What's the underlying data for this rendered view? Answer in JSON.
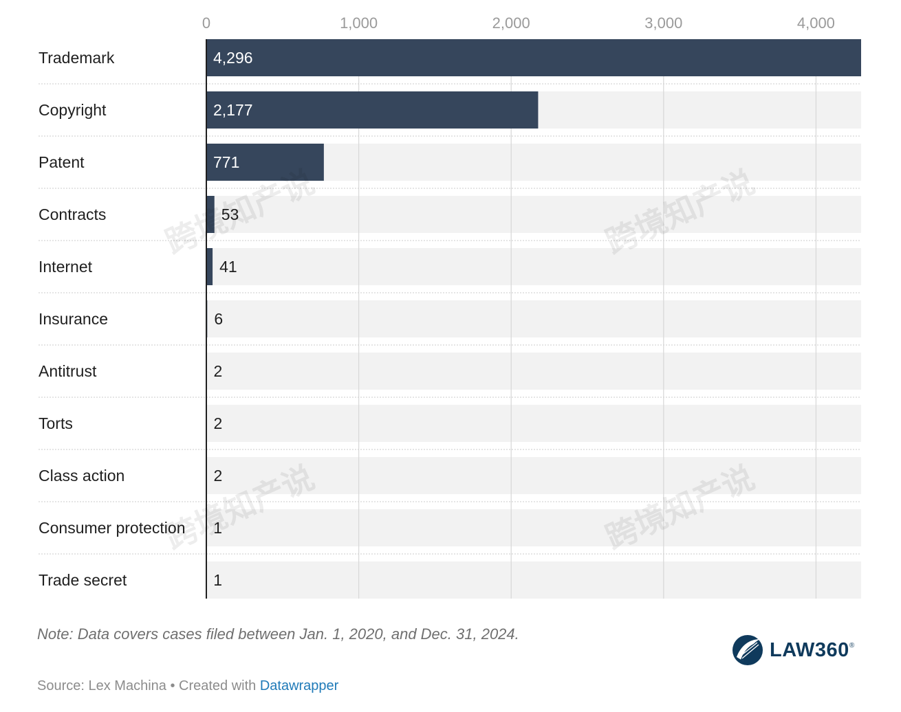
{
  "chart_data": {
    "type": "bar",
    "orientation": "horizontal",
    "categories": [
      "Trademark",
      "Copyright",
      "Patent",
      "Contracts",
      "Internet",
      "Insurance",
      "Antitrust",
      "Torts",
      "Class action",
      "Consumer protection",
      "Trade secret"
    ],
    "values": [
      4296,
      2177,
      771,
      53,
      41,
      6,
      2,
      2,
      2,
      1,
      1
    ],
    "value_labels": [
      "4,296",
      "2,177",
      "771",
      "53",
      "41",
      "6",
      "2",
      "2",
      "2",
      "1",
      "1"
    ],
    "x_ticks": [
      0,
      1000,
      2000,
      3000,
      4000
    ],
    "x_tick_labels": [
      "0",
      "1,000",
      "2,000",
      "3,000",
      "4,000"
    ],
    "xlim": [
      0,
      4296
    ],
    "axis_position": "top",
    "grid": true,
    "colors": {
      "bar": "#36465c",
      "track": "#f2f2f2",
      "grid": "#d9d9d9",
      "axis": "#1f1f1f"
    }
  },
  "watermark": "跨境知产说",
  "note": "Note: Data covers cases filed between Jan. 1, 2020, and Dec. 31, 2024.",
  "footer": {
    "source_text": "Source: Lex Machina • Created with ",
    "link_text": "Datawrapper"
  },
  "logo": {
    "text": "LAW360",
    "mark": "®",
    "icon": "law360-feather-globe-icon"
  }
}
